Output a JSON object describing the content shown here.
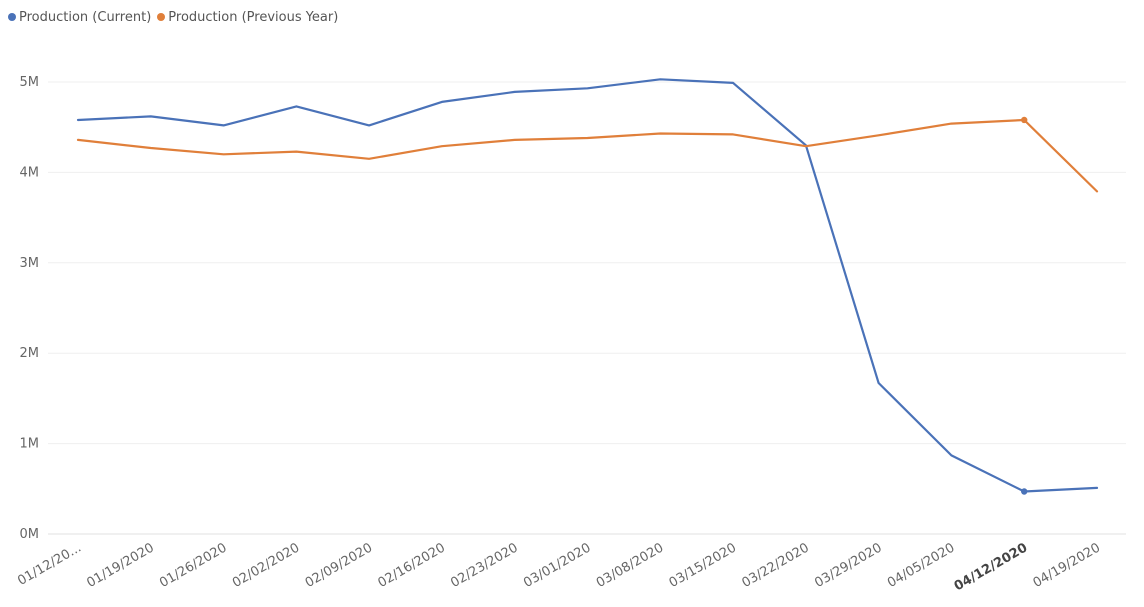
{
  "chart_data": {
    "type": "line",
    "categories": [
      "01/12/20...",
      "01/19/2020",
      "01/26/2020",
      "02/02/2020",
      "02/09/2020",
      "02/16/2020",
      "02/23/2020",
      "03/01/2020",
      "03/08/2020",
      "03/15/2020",
      "03/22/2020",
      "03/29/2020",
      "04/05/2020",
      "04/12/2020",
      "04/19/2020"
    ],
    "highlighted_category": "04/12/2020",
    "y_ticks": [
      "0M",
      "1M",
      "2M",
      "3M",
      "4M",
      "5M"
    ],
    "ylim": [
      0,
      5000000
    ],
    "grid": true,
    "legend_position": "top-left",
    "series": [
      {
        "name": "Production (Current)",
        "color": "#4a72b8",
        "values": [
          4580000,
          4620000,
          4520000,
          4730000,
          4520000,
          4780000,
          4890000,
          4930000,
          5030000,
          4990000,
          4300000,
          1670000,
          870000,
          470000,
          510000
        ]
      },
      {
        "name": "Production (Previous Year)",
        "color": "#e07f3a",
        "values": [
          4360000,
          4270000,
          4200000,
          4230000,
          4150000,
          4290000,
          4360000,
          4380000,
          4430000,
          4420000,
          4290000,
          4410000,
          4540000,
          4580000,
          3790000
        ]
      }
    ]
  }
}
